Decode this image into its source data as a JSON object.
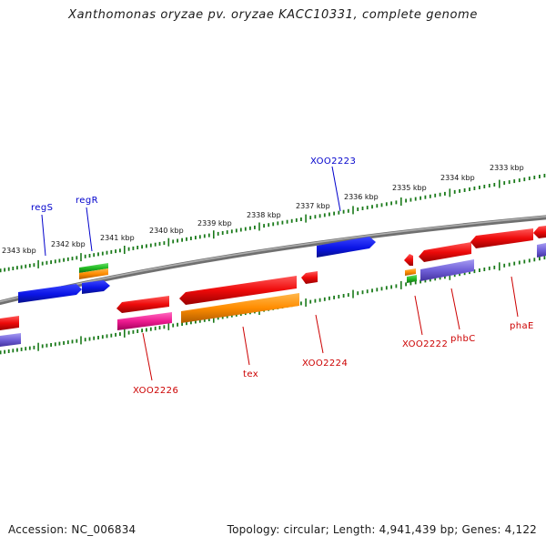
{
  "title": "Xanthomonas oryzae pv. oryzae KACC10331, complete genome",
  "footer": {
    "accession": "Accession: NC_006834",
    "summary": "Topology: circular; Length: 4,941,439 bp; Genes: 4,122"
  },
  "colors": {
    "backbone": "#8a8a8a",
    "tick": "#1a7a1a",
    "forward_gene": "#0a14e6",
    "reverse_gene": "#ee0a0a",
    "pink": "#ee1a90",
    "orange": "#ff8c00",
    "green": "#22bb22",
    "purple": "#7060d8",
    "label_top": "#0000cc",
    "label_bottom": "#cc0000"
  },
  "scale_labels": [
    "2343 kbp",
    "2342 kbp",
    "2341 kbp",
    "2340 kbp",
    "2339 kbp",
    "2338 kbp",
    "2337 kbp",
    "2336 kbp",
    "2335 kbp",
    "2334 kbp",
    "2333 kbp"
  ],
  "gene_labels_top": [
    "regS",
    "regR",
    "XOO2223"
  ],
  "gene_labels_bottom": [
    "XOO2226",
    "tex",
    "XOO2224",
    "XOO2222",
    "phbC",
    "phaE"
  ]
}
